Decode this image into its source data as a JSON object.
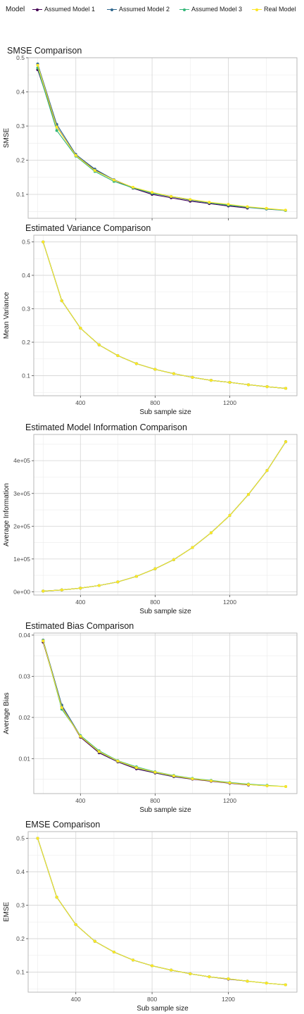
{
  "legend": {
    "title": "Model",
    "entries": [
      {
        "label": "Assumed Model 1",
        "color": "#440154"
      },
      {
        "label": "Assumed Model 2",
        "color": "#31688e"
      },
      {
        "label": "Assumed Model 3",
        "color": "#35b779"
      },
      {
        "label": "Real Model",
        "color": "#fde725"
      }
    ]
  },
  "chart_data": [
    {
      "type": "line",
      "title": "SMSE Comparison",
      "xlabel": "Sub sample size",
      "ylabel": "SMSE",
      "xlim": [
        150,
        1560
      ],
      "ylim": [
        0.03,
        0.5
      ],
      "xticks": [
        400,
        800,
        1200
      ],
      "yticks": [
        0.1,
        0.2,
        0.3,
        0.4,
        0.5
      ],
      "ytick_labels": [
        "0.1",
        "0.2",
        "0.3",
        "0.4",
        "0.5"
      ],
      "grid": true,
      "legend": "top",
      "series": [
        {
          "name": "Assumed Model 1",
          "x": [
            200,
            300,
            400,
            500,
            600,
            700,
            800,
            900,
            1000,
            1100,
            1200,
            1300
          ],
          "y": [
            0.465,
            0.298,
            0.214,
            0.172,
            0.142,
            0.118,
            0.1,
            0.09,
            0.08,
            0.073,
            0.066,
            0.06
          ]
        },
        {
          "name": "Assumed Model 2",
          "x": [
            200,
            300,
            400,
            500,
            600,
            700,
            800,
            900,
            1000,
            1100,
            1200,
            1300,
            1400,
            1500
          ],
          "y": [
            0.482,
            0.305,
            0.217,
            0.174,
            0.143,
            0.12,
            0.103,
            0.093,
            0.083,
            0.075,
            0.068,
            0.062,
            0.057,
            0.053
          ]
        },
        {
          "name": "Assumed Model 3",
          "x": [
            200,
            300,
            400,
            500,
            600,
            700,
            800,
            900,
            1000,
            1100,
            1200,
            1300,
            1400,
            1500
          ],
          "y": [
            0.47,
            0.287,
            0.212,
            0.167,
            0.138,
            0.119,
            0.104,
            0.094,
            0.085,
            0.076,
            0.069,
            0.063,
            0.058,
            0.053
          ]
        },
        {
          "name": "Real Model",
          "x": [
            200,
            300,
            400,
            500,
            600,
            700,
            800,
            900,
            1000,
            1100,
            1200,
            1300,
            1400,
            1500
          ],
          "y": [
            0.478,
            0.297,
            0.214,
            0.17,
            0.142,
            0.121,
            0.106,
            0.094,
            0.085,
            0.077,
            0.071,
            0.064,
            0.059,
            0.054
          ]
        }
      ]
    },
    {
      "type": "line",
      "title": "Estimated Variance Comparison",
      "xlabel": "Sub sample size",
      "ylabel": "Mean Variance",
      "xlim": [
        150,
        1560
      ],
      "ylim": [
        0.04,
        0.52
      ],
      "xticks": [
        400,
        800,
        1200
      ],
      "yticks": [
        0.1,
        0.2,
        0.3,
        0.4,
        0.5
      ],
      "ytick_labels": [
        "0.1",
        "0.2",
        "0.3",
        "0.4",
        "0.5"
      ],
      "grid": true,
      "legend": "top",
      "series": [
        {
          "name": "Assumed Model 1",
          "x": [
            200,
            300,
            400,
            500,
            600,
            700,
            800,
            900,
            1000,
            1100,
            1200,
            1300,
            1400,
            1500
          ],
          "y": [
            0.5,
            0.324,
            0.242,
            0.192,
            0.16,
            0.136,
            0.119,
            0.106,
            0.095,
            0.086,
            0.08,
            0.073,
            0.067,
            0.062
          ]
        },
        {
          "name": "Assumed Model 2",
          "x": [
            200,
            300,
            400,
            500,
            600,
            700,
            800,
            900,
            1000,
            1100,
            1200,
            1300,
            1400,
            1500
          ],
          "y": [
            0.5,
            0.324,
            0.242,
            0.192,
            0.16,
            0.136,
            0.119,
            0.106,
            0.095,
            0.086,
            0.08,
            0.073,
            0.067,
            0.062
          ]
        },
        {
          "name": "Assumed Model 3",
          "x": [
            200,
            300,
            400,
            500,
            600,
            700,
            800,
            900,
            1000,
            1100,
            1200,
            1300,
            1400,
            1500
          ],
          "y": [
            0.5,
            0.324,
            0.242,
            0.192,
            0.16,
            0.136,
            0.119,
            0.106,
            0.095,
            0.086,
            0.08,
            0.073,
            0.067,
            0.062
          ]
        },
        {
          "name": "Real Model",
          "x": [
            200,
            300,
            400,
            500,
            600,
            700,
            800,
            900,
            1000,
            1100,
            1200,
            1300,
            1400,
            1500
          ],
          "y": [
            0.5,
            0.324,
            0.242,
            0.192,
            0.16,
            0.136,
            0.119,
            0.106,
            0.095,
            0.086,
            0.08,
            0.073,
            0.067,
            0.062
          ]
        }
      ]
    },
    {
      "type": "line",
      "title": "Estimated Model Information Comparison",
      "xlabel": "Sub sample size",
      "ylabel": "Average Information",
      "xlim": [
        150,
        1560
      ],
      "ylim": [
        -10000,
        480000
      ],
      "xticks": [
        400,
        800,
        1200
      ],
      "yticks": [
        0,
        100000,
        200000,
        300000,
        400000
      ],
      "ytick_labels": [
        "0e+00",
        "1e+05",
        "2e+05",
        "3e+05",
        "4e+05"
      ],
      "grid": true,
      "legend": "top",
      "series": [
        {
          "name": "Assumed Model 1",
          "x": [
            200,
            300,
            400,
            500,
            600,
            700,
            800,
            900,
            1000,
            1100,
            1200,
            1300,
            1400,
            1500
          ],
          "y": [
            2000,
            5500,
            11000,
            19000,
            30000,
            47000,
            70000,
            98000,
            135000,
            180000,
            233000,
            297000,
            370000,
            458000
          ]
        },
        {
          "name": "Assumed Model 2",
          "x": [
            200,
            300,
            400,
            500,
            600,
            700,
            800,
            900,
            1000,
            1100,
            1200,
            1300,
            1400,
            1500
          ],
          "y": [
            2000,
            5500,
            11000,
            19000,
            30000,
            47000,
            70000,
            98000,
            135000,
            180000,
            233000,
            297000,
            370000,
            458000
          ]
        },
        {
          "name": "Assumed Model 3",
          "x": [
            200,
            300,
            400,
            500,
            600,
            700,
            800,
            900,
            1000,
            1100,
            1200,
            1300,
            1400,
            1500
          ],
          "y": [
            2000,
            5500,
            11000,
            19000,
            30000,
            47000,
            70000,
            98000,
            135000,
            180000,
            233000,
            297000,
            370000,
            458000
          ]
        },
        {
          "name": "Real Model",
          "x": [
            200,
            300,
            400,
            500,
            600,
            700,
            800,
            900,
            1000,
            1100,
            1200,
            1300,
            1400,
            1500
          ],
          "y": [
            2000,
            5500,
            11000,
            19000,
            30000,
            47000,
            70000,
            98000,
            135000,
            180000,
            233000,
            297000,
            370000,
            458000
          ]
        }
      ]
    },
    {
      "type": "line",
      "title": "Estimated Bias Comparison",
      "xlabel": "Sub sample size",
      "ylabel": "Average Bias",
      "xlim": [
        150,
        1560
      ],
      "ylim": [
        0.0015,
        0.0405
      ],
      "xticks": [
        400,
        800,
        1200
      ],
      "yticks": [
        0.01,
        0.02,
        0.03,
        0.04
      ],
      "ytick_labels": [
        "0.01",
        "0.02",
        "0.03",
        "0.04"
      ],
      "grid": true,
      "legend": "top",
      "series": [
        {
          "name": "Assumed Model 1",
          "x": [
            200,
            300,
            400,
            500,
            600,
            700,
            800,
            900,
            1000,
            1100,
            1200,
            1300
          ],
          "y": [
            0.0383,
            0.0226,
            0.0152,
            0.0114,
            0.0092,
            0.0075,
            0.0065,
            0.0056,
            0.005,
            0.0045,
            0.004,
            0.0036
          ]
        },
        {
          "name": "Assumed Model 2",
          "x": [
            200,
            300,
            400,
            500,
            600,
            700,
            800,
            900,
            1000,
            1100,
            1200,
            1300,
            1400
          ],
          "y": [
            0.0388,
            0.023,
            0.0155,
            0.0116,
            0.0093,
            0.0077,
            0.0066,
            0.0057,
            0.0051,
            0.0046,
            0.0041,
            0.0037,
            0.0034
          ]
        },
        {
          "name": "Assumed Model 3",
          "x": [
            200,
            300,
            400,
            500,
            600,
            700,
            800,
            900,
            1000,
            1100,
            1200,
            1300,
            1400,
            1500
          ],
          "y": [
            0.0387,
            0.022,
            0.0156,
            0.0119,
            0.0095,
            0.008,
            0.0068,
            0.0059,
            0.0052,
            0.0047,
            0.0042,
            0.0038,
            0.0035,
            0.0032
          ]
        },
        {
          "name": "Real Model",
          "x": [
            200,
            300,
            400,
            500,
            600,
            700,
            800,
            900,
            1000,
            1100,
            1200,
            1300,
            1400,
            1500
          ],
          "y": [
            0.0386,
            0.0224,
            0.0154,
            0.0117,
            0.0094,
            0.0078,
            0.0067,
            0.0058,
            0.0051,
            0.0046,
            0.0041,
            0.0037,
            0.0034,
            0.0032
          ]
        }
      ]
    },
    {
      "type": "line",
      "title": "EMSE Comparison",
      "xlabel": "Sub sample size",
      "ylabel": "EMSE",
      "xlim": [
        150,
        1560
      ],
      "ylim": [
        0.04,
        0.52
      ],
      "xticks": [
        400,
        800,
        1200
      ],
      "yticks": [
        0.1,
        0.2,
        0.3,
        0.4,
        0.5
      ],
      "ytick_labels": [
        "0.1",
        "0.2",
        "0.3",
        "0.4",
        "0.5"
      ],
      "grid": true,
      "legend": "top",
      "series": [
        {
          "name": "Assumed Model 1",
          "x": [
            200,
            300,
            400,
            500,
            600,
            700,
            800,
            900,
            1000,
            1100,
            1200,
            1300
          ],
          "y": [
            0.5,
            0.324,
            0.242,
            0.192,
            0.16,
            0.136,
            0.119,
            0.106,
            0.095,
            0.086,
            0.079,
            0.073
          ]
        },
        {
          "name": "Assumed Model 2",
          "x": [
            200,
            300,
            400,
            500,
            600,
            700,
            800,
            900,
            1000,
            1100,
            1200,
            1300,
            1400,
            1500
          ],
          "y": [
            0.5,
            0.324,
            0.242,
            0.192,
            0.16,
            0.136,
            0.119,
            0.106,
            0.095,
            0.086,
            0.08,
            0.073,
            0.067,
            0.062
          ]
        },
        {
          "name": "Assumed Model 3",
          "x": [
            200,
            300,
            400,
            500,
            600,
            700,
            800,
            900,
            1000,
            1100,
            1200,
            1300,
            1400,
            1500
          ],
          "y": [
            0.5,
            0.324,
            0.242,
            0.192,
            0.16,
            0.136,
            0.119,
            0.106,
            0.095,
            0.086,
            0.08,
            0.073,
            0.067,
            0.062
          ]
        },
        {
          "name": "Real Model",
          "x": [
            200,
            300,
            400,
            500,
            600,
            700,
            800,
            900,
            1000,
            1100,
            1200,
            1300,
            1400,
            1500
          ],
          "y": [
            0.5,
            0.324,
            0.242,
            0.192,
            0.16,
            0.136,
            0.119,
            0.106,
            0.095,
            0.086,
            0.08,
            0.073,
            0.067,
            0.062
          ]
        }
      ]
    }
  ]
}
